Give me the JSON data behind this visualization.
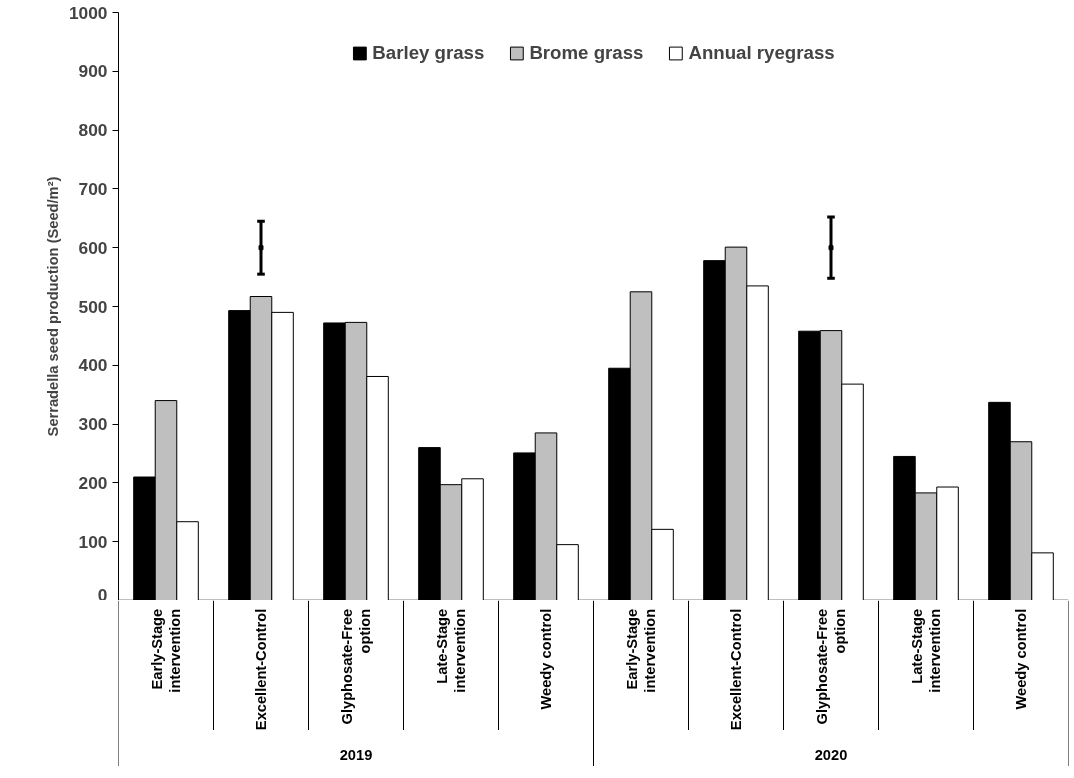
{
  "chart_data": {
    "type": "bar",
    "ylabel": "Serradella seed production (Seed/m²)",
    "categories": [
      "Early-Stage intervention",
      "Excellent-Control",
      "Glyphosate-Free option",
      "Late-Stage intervention",
      "Weedy control",
      "Early-Stage intervention",
      "Excellent-Control",
      "Glyphosate-Free option",
      "Late-Stage intervention",
      "Weedy control"
    ],
    "series": [
      {
        "name": "Barley grass",
        "color": "#000000",
        "values": [
          210,
          493,
          472,
          260,
          251,
          395,
          578,
          458,
          245,
          337
        ]
      },
      {
        "name": "Brome grass",
        "color": "#bfbfbf",
        "values": [
          340,
          517,
          473,
          197,
          285,
          525,
          601,
          459,
          183,
          270
        ]
      },
      {
        "name": "Annual ryegrass",
        "color": "#ffffff",
        "values": [
          134,
          490,
          381,
          207,
          95,
          121,
          535,
          368,
          193,
          81
        ]
      },
      {
        "type": "scatter",
        "marker": "square",
        "color": "#000000",
        "values": [
          null,
          600,
          null,
          null,
          null,
          null,
          null,
          600,
          null,
          null
        ],
        "errors": [
          null,
          [
            555,
            645
          ],
          null,
          null,
          null,
          null,
          null,
          [
            548,
            652
          ],
          null,
          null
        ]
      }
    ],
    "ylim": [
      0,
      1000
    ],
    "yticks": [
      0,
      100,
      200,
      300,
      400,
      500,
      600,
      700,
      800,
      900,
      1000
    ],
    "grid": false,
    "legend": "top",
    "annotations": [
      "2019",
      "2020"
    ]
  }
}
